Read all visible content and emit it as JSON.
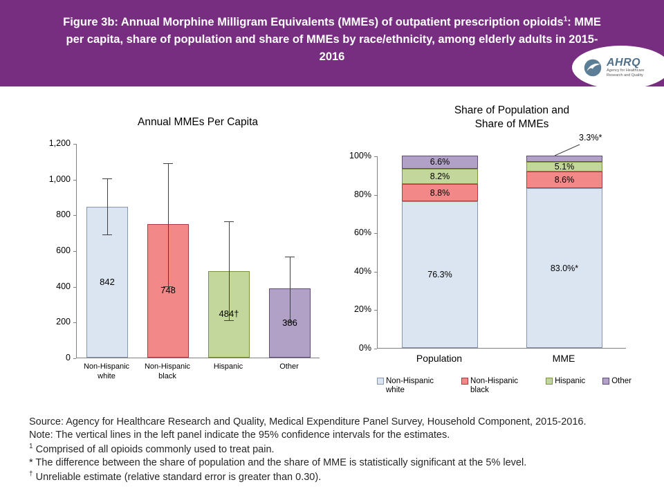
{
  "header": {
    "title_part1": "Figure 3b: Annual Morphine Milligram Equivalents (MMEs) of outpatient prescription opioids",
    "title_sup": "1",
    "title_part2": ": MME per capita, share of population and share of MMEs by race/ethnicity, among elderly adults in 2015-2016",
    "background": "#772d80"
  },
  "logo": {
    "acronym": "AHRQ",
    "tagline1": "Agency for Healthcare",
    "tagline2": "Research and Quality"
  },
  "chart_data": [
    {
      "type": "bar",
      "title": "Annual MMEs Per Capita",
      "categories": [
        "Non-Hispanic white",
        "Non-Hispanic black",
        "Hispanic",
        "Other"
      ],
      "values": [
        842,
        748,
        484,
        386
      ],
      "value_labels": [
        "842",
        "748",
        "484†",
        "386"
      ],
      "ci_low": [
        690,
        400,
        210,
        200
      ],
      "ci_high": [
        1005,
        1090,
        765,
        570
      ],
      "ylim": [
        0,
        1200
      ],
      "y_ticks": [
        {
          "v": 0,
          "label": "0"
        },
        {
          "v": 200,
          "label": "200"
        },
        {
          "v": 400,
          "label": "400"
        },
        {
          "v": 600,
          "label": "600"
        },
        {
          "v": 800,
          "label": "800"
        },
        {
          "v": 1000,
          "label": "1,000"
        },
        {
          "v": 1200,
          "label": "1,200"
        }
      ],
      "grid": false,
      "error_bars": "95% confidence intervals"
    },
    {
      "type": "stacked-bar",
      "title": "Share of Population and Share of MMEs",
      "categories": [
        "Population",
        "MME"
      ],
      "series": [
        {
          "name": "Non-Hispanic white",
          "values": [
            76.3,
            83.0
          ],
          "labels": [
            "76.3%",
            "83.0%*"
          ]
        },
        {
          "name": "Non-Hispanic black",
          "values": [
            8.8,
            8.6
          ],
          "labels": [
            "8.8%",
            "8.6%"
          ]
        },
        {
          "name": "Hispanic",
          "values": [
            8.2,
            5.1
          ],
          "labels": [
            "8.2%",
            "5.1%"
          ]
        },
        {
          "name": "Other",
          "values": [
            6.6,
            3.3
          ],
          "labels": [
            "6.6%",
            "3.3%*"
          ]
        }
      ],
      "ylim": [
        0,
        100
      ],
      "y_ticks": [
        {
          "v": 0,
          "label": "0%"
        },
        {
          "v": 20,
          "label": "20%"
        },
        {
          "v": 40,
          "label": "40%"
        },
        {
          "v": 60,
          "label": "60%"
        },
        {
          "v": 80,
          "label": "80%"
        },
        {
          "v": 100,
          "label": "100%"
        }
      ],
      "grid": false,
      "legend": [
        "Non-Hispanic white",
        "Non-Hispanic black",
        "Hispanic",
        "Other"
      ],
      "legend_position": "bottom",
      "callout": {
        "label": "3.3%*",
        "target_category": "MME",
        "target_series": "Other"
      }
    }
  ],
  "colors": {
    "header_purple": "#772d80",
    "series": [
      {
        "name": "Non-Hispanic white",
        "fill": "#dbe5f1",
        "border": "#8496af"
      },
      {
        "name": "Non-Hispanic black",
        "fill": "#f28888",
        "border": "#a43e3e"
      },
      {
        "name": "Hispanic",
        "fill": "#c3d69b",
        "border": "#76923c"
      },
      {
        "name": "Other",
        "fill": "#b2a1c7",
        "border": "#60497b"
      }
    ],
    "error_bar": "#404040"
  },
  "footnotes": {
    "source": "Source: Agency for Healthcare Research and Quality, Medical Expenditure Panel Survey, Household Component, 2015-2016.",
    "note": "Note: The vertical lines in the left panel indicate the 95% confidence intervals for the estimates.",
    "fn1_sup": "1",
    "fn1_text": " Comprised of all opioids commonly used to treat pain.",
    "fn_asterisk": "* The difference between the share of population and the share of MME is statistically significant at the 5% level.",
    "fn_dagger_sup": "†",
    "fn_dagger_text": " Unreliable estimate (relative standard error is greater than 0.30)."
  }
}
